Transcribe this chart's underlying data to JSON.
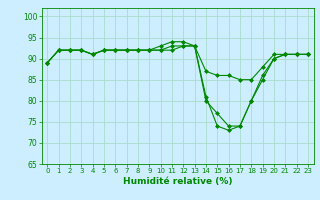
{
  "title": "",
  "xlabel": "Humidité relative (%)",
  "ylabel": "",
  "background_color": "#cceeff",
  "grid_color": "#aaddcc",
  "line_color": "#008800",
  "marker_color": "#008800",
  "xlim": [
    -0.5,
    23.5
  ],
  "ylim": [
    65,
    102
  ],
  "yticks": [
    65,
    70,
    75,
    80,
    85,
    90,
    95,
    100
  ],
  "xticks": [
    0,
    1,
    2,
    3,
    4,
    5,
    6,
    7,
    8,
    9,
    10,
    11,
    12,
    13,
    14,
    15,
    16,
    17,
    18,
    19,
    20,
    21,
    22,
    23
  ],
  "series": [
    [
      89,
      92,
      92,
      92,
      91,
      92,
      92,
      92,
      92,
      92,
      92,
      92,
      93,
      93,
      80,
      77,
      74,
      74,
      80,
      85,
      90,
      91,
      91,
      91
    ],
    [
      89,
      92,
      92,
      92,
      91,
      92,
      92,
      92,
      92,
      92,
      93,
      94,
      94,
      93,
      81,
      74,
      73,
      74,
      80,
      86,
      90,
      91,
      91,
      91
    ],
    [
      89,
      92,
      92,
      92,
      91,
      92,
      92,
      92,
      92,
      92,
      92,
      93,
      93,
      93,
      87,
      86,
      86,
      85,
      85,
      88,
      91,
      91,
      91,
      91
    ]
  ]
}
